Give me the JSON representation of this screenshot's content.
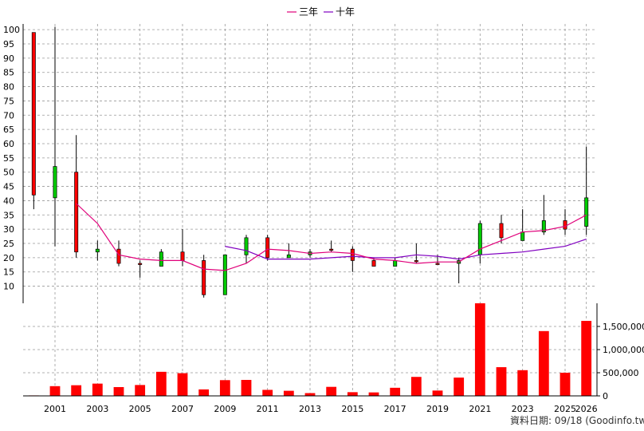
{
  "chart_data": {
    "type": "candlestick",
    "colors": {
      "up": "#ff0000",
      "down": "#00cc00",
      "volume": "#ff0000",
      "ma3": "#e0007a",
      "ma10": "#8000c0",
      "grid": "#999999"
    },
    "legend": {
      "position": "top-center",
      "items": [
        {
          "label": "三年",
          "color": "#e0007a"
        },
        {
          "label": "十年",
          "color": "#8000c0"
        }
      ]
    },
    "footer": "資料日期: 09/18  (Goodinfo.tw)",
    "price_axis": {
      "range": [
        4,
        102
      ],
      "ticks": [
        "10",
        "15",
        "20",
        "25",
        "30",
        "35",
        "40",
        "45",
        "50",
        "55",
        "60",
        "65",
        "70",
        "75",
        "80",
        "85",
        "90",
        "95",
        "100"
      ]
    },
    "volume_axis": {
      "range": [
        0,
        2000000
      ],
      "ticks": [
        "0",
        "500,000",
        "1,000,000",
        "1,500,000"
      ]
    },
    "x_ticks": [
      "2001",
      "2003",
      "2005",
      "2007",
      "2009",
      "2011",
      "2013",
      "2015",
      "2017",
      "2019",
      "2021",
      "2023",
      "2025",
      "2026"
    ],
    "years": [
      2000,
      2001,
      2002,
      2003,
      2004,
      2005,
      2006,
      2007,
      2008,
      2009,
      2010,
      2011,
      2012,
      2013,
      2014,
      2015,
      2016,
      2017,
      2018,
      2019,
      2020,
      2021,
      2022,
      2023,
      2024,
      2025,
      2026
    ],
    "candles": [
      {
        "year": 2000,
        "open": 42,
        "high": 99,
        "low": 37,
        "close": 99
      },
      {
        "year": 2001,
        "open": 52,
        "high": 101,
        "low": 24,
        "close": 41
      },
      {
        "year": 2002,
        "open": 22,
        "high": 63,
        "low": 20,
        "close": 50
      },
      {
        "year": 2003,
        "open": 23,
        "high": 26,
        "low": 19,
        "close": 22
      },
      {
        "year": 2004,
        "open": 18,
        "high": 26,
        "low": 17,
        "close": 23
      },
      {
        "year": 2005,
        "open": 18,
        "high": 19,
        "low": 13,
        "close": 18
      },
      {
        "year": 2006,
        "open": 22,
        "high": 23,
        "low": 17,
        "close": 17
      },
      {
        "year": 2007,
        "open": 19,
        "high": 30,
        "low": 17,
        "close": 22
      },
      {
        "year": 2008,
        "open": 7,
        "high": 21,
        "low": 6,
        "close": 19
      },
      {
        "year": 2009,
        "open": 21,
        "high": 21,
        "low": 7,
        "close": 7
      },
      {
        "year": 2010,
        "open": 27,
        "high": 28,
        "low": 18,
        "close": 21
      },
      {
        "year": 2011,
        "open": 20,
        "high": 28,
        "low": 19,
        "close": 27
      },
      {
        "year": 2012,
        "open": 21,
        "high": 25,
        "low": 20,
        "close": 20
      },
      {
        "year": 2013,
        "open": 22,
        "high": 23,
        "low": 20,
        "close": 21
      },
      {
        "year": 2014,
        "open": 23,
        "high": 26,
        "low": 22,
        "close": 23
      },
      {
        "year": 2015,
        "open": 19,
        "high": 24,
        "low": 15,
        "close": 23
      },
      {
        "year": 2016,
        "open": 17,
        "high": 20,
        "low": 17,
        "close": 19
      },
      {
        "year": 2017,
        "open": 19,
        "high": 20,
        "low": 17,
        "close": 17
      },
      {
        "year": 2018,
        "open": 19,
        "high": 25,
        "low": 18,
        "close": 19
      },
      {
        "year": 2019,
        "open": 18,
        "high": 21,
        "low": 18,
        "close": 18
      },
      {
        "year": 2020,
        "open": 19,
        "high": 20,
        "low": 11,
        "close": 18
      },
      {
        "year": 2021,
        "open": 32,
        "high": 33,
        "low": 18,
        "close": 21
      },
      {
        "year": 2022,
        "open": 27,
        "high": 35,
        "low": 25,
        "close": 32
      },
      {
        "year": 2023,
        "open": 29,
        "high": 37,
        "low": 26,
        "close": 26
      },
      {
        "year": 2024,
        "open": 33,
        "high": 42,
        "low": 28,
        "close": 29
      },
      {
        "year": 2025,
        "open": 30,
        "high": 37,
        "low": 28,
        "close": 33
      },
      {
        "year": 2026,
        "open": 41,
        "high": 59,
        "low": 28,
        "close": 31
      }
    ],
    "ma3": [
      {
        "year": 2002,
        "value": 39
      },
      {
        "year": 2003,
        "value": 32
      },
      {
        "year": 2004,
        "value": 21
      },
      {
        "year": 2005,
        "value": 19.5
      },
      {
        "year": 2006,
        "value": 19
      },
      {
        "year": 2007,
        "value": 19
      },
      {
        "year": 2008,
        "value": 16
      },
      {
        "year": 2009,
        "value": 15.5
      },
      {
        "year": 2010,
        "value": 18
      },
      {
        "year": 2011,
        "value": 23
      },
      {
        "year": 2012,
        "value": 22.5
      },
      {
        "year": 2013,
        "value": 21.5
      },
      {
        "year": 2014,
        "value": 22
      },
      {
        "year": 2015,
        "value": 21.5
      },
      {
        "year": 2016,
        "value": 19.5
      },
      {
        "year": 2017,
        "value": 19
      },
      {
        "year": 2018,
        "value": 18
      },
      {
        "year": 2019,
        "value": 18.5
      },
      {
        "year": 2020,
        "value": 18.5
      },
      {
        "year": 2021,
        "value": 23
      },
      {
        "year": 2022,
        "value": 26
      },
      {
        "year": 2023,
        "value": 29
      },
      {
        "year": 2024,
        "value": 29.5
      },
      {
        "year": 2025,
        "value": 31
      },
      {
        "year": 2026,
        "value": 35
      }
    ],
    "ma10": [
      {
        "year": 2009,
        "value": 24
      },
      {
        "year": 2010,
        "value": 22.5
      },
      {
        "year": 2011,
        "value": 19.5
      },
      {
        "year": 2012,
        "value": 19.5
      },
      {
        "year": 2013,
        "value": 19.5
      },
      {
        "year": 2014,
        "value": 20
      },
      {
        "year": 2015,
        "value": 20.5
      },
      {
        "year": 2016,
        "value": 20
      },
      {
        "year": 2017,
        "value": 20
      },
      {
        "year": 2018,
        "value": 21
      },
      {
        "year": 2019,
        "value": 20.5
      },
      {
        "year": 2020,
        "value": 19.5
      },
      {
        "year": 2021,
        "value": 21
      },
      {
        "year": 2022,
        "value": 21.5
      },
      {
        "year": 2023,
        "value": 22
      },
      {
        "year": 2024,
        "value": 23
      },
      {
        "year": 2025,
        "value": 24
      },
      {
        "year": 2026,
        "value": 26.5
      }
    ],
    "volume": [
      {
        "year": 2000,
        "value": 10000
      },
      {
        "year": 2001,
        "value": 210000
      },
      {
        "year": 2002,
        "value": 230000
      },
      {
        "year": 2003,
        "value": 265000
      },
      {
        "year": 2004,
        "value": 190000
      },
      {
        "year": 2005,
        "value": 235000
      },
      {
        "year": 2006,
        "value": 520000
      },
      {
        "year": 2007,
        "value": 490000
      },
      {
        "year": 2008,
        "value": 140000
      },
      {
        "year": 2009,
        "value": 340000
      },
      {
        "year": 2010,
        "value": 345000
      },
      {
        "year": 2011,
        "value": 130000
      },
      {
        "year": 2012,
        "value": 110000
      },
      {
        "year": 2013,
        "value": 60000
      },
      {
        "year": 2014,
        "value": 195000
      },
      {
        "year": 2015,
        "value": 80000
      },
      {
        "year": 2016,
        "value": 75000
      },
      {
        "year": 2017,
        "value": 175000
      },
      {
        "year": 2018,
        "value": 410000
      },
      {
        "year": 2019,
        "value": 115000
      },
      {
        "year": 2020,
        "value": 395000
      },
      {
        "year": 2021,
        "value": 2000000
      },
      {
        "year": 2022,
        "value": 620000
      },
      {
        "year": 2023,
        "value": 555000
      },
      {
        "year": 2024,
        "value": 1400000
      },
      {
        "year": 2025,
        "value": 500000
      },
      {
        "year": 2026,
        "value": 1620000
      }
    ]
  }
}
